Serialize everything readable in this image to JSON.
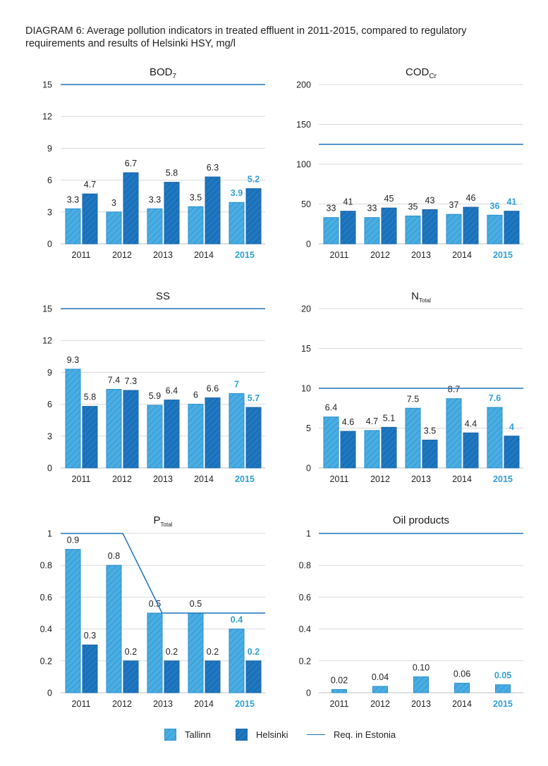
{
  "title": "DIAGRAM 6: Average pollution indicators in treated effluent in 2011-2015, compared to regulatory requirements and results of Helsinki HSY, mg/l",
  "colors": {
    "tallinn": "#4aaee3",
    "helsinki": "#1f78c1",
    "requirement": "#1f73b7",
    "highlight": "#2e9fd6",
    "grid": "#d9d9d9"
  },
  "legend": {
    "tallinn": "Tallinn",
    "helsinki": "Helsinki",
    "requirement": "Req. in Estonia"
  },
  "chart_data": [
    {
      "type": "bar",
      "title": "BOD",
      "title_sub": "7",
      "categories": [
        "2011",
        "2012",
        "2013",
        "2014",
        "2015"
      ],
      "highlight_category": "2015",
      "ylim": [
        0,
        15
      ],
      "yticks": [
        "0",
        "3",
        "6",
        "9",
        "12",
        "15"
      ],
      "series": [
        {
          "name": "Tallinn",
          "values": [
            3.3,
            3,
            3.3,
            3.5,
            3.9
          ],
          "labels": [
            "3.3",
            "3",
            "3.3",
            "3.5",
            "3.9"
          ]
        },
        {
          "name": "Helsinki",
          "values": [
            4.7,
            6.7,
            5.8,
            6.3,
            5.2
          ],
          "labels": [
            "4.7",
            "6.7",
            "5.8",
            "6.3",
            "5.2"
          ]
        }
      ],
      "requirement": [
        15,
        15,
        15,
        15,
        15
      ]
    },
    {
      "type": "bar",
      "title": "COD",
      "title_sub": "Cr",
      "categories": [
        "2011",
        "2012",
        "2013",
        "2014",
        "2015"
      ],
      "highlight_category": "2015",
      "ylim": [
        0,
        200
      ],
      "yticks": [
        "0",
        "50",
        "100",
        "150",
        "200"
      ],
      "series": [
        {
          "name": "Tallinn",
          "values": [
            33,
            33,
            35,
            37,
            36
          ],
          "labels": [
            "33",
            "33",
            "35",
            "37",
            "36"
          ]
        },
        {
          "name": "Helsinki",
          "values": [
            41,
            45,
            43,
            46,
            41
          ],
          "labels": [
            "41",
            "45",
            "43",
            "46",
            "41"
          ]
        }
      ],
      "requirement": [
        125,
        125,
        125,
        125,
        125
      ]
    },
    {
      "type": "bar",
      "title": "SS",
      "title_sub": "",
      "categories": [
        "2011",
        "2012",
        "2013",
        "2014",
        "2015"
      ],
      "highlight_category": "2015",
      "ylim": [
        0,
        15
      ],
      "yticks": [
        "0",
        "3",
        "6",
        "9",
        "12",
        "15"
      ],
      "series": [
        {
          "name": "Tallinn",
          "values": [
            9.3,
            7.4,
            5.9,
            6,
            7
          ],
          "labels": [
            "9.3",
            "7.4",
            "5.9",
            "6",
            "7"
          ]
        },
        {
          "name": "Helsinki",
          "values": [
            5.8,
            7.3,
            6.4,
            6.6,
            5.7
          ],
          "labels": [
            "5.8",
            "7.3",
            "6.4",
            "6.6",
            "5.7"
          ]
        }
      ],
      "requirement": [
        15,
        15,
        15,
        15,
        15
      ]
    },
    {
      "type": "bar",
      "title": "N",
      "title_sub": "Total",
      "categories": [
        "2011",
        "2012",
        "2013",
        "2014",
        "2015"
      ],
      "highlight_category": "2015",
      "ylim": [
        0,
        20
      ],
      "yticks": [
        "0",
        "5",
        "10",
        "15",
        "20"
      ],
      "series": [
        {
          "name": "Tallinn",
          "values": [
            6.4,
            4.7,
            7.5,
            8.7,
            7.6
          ],
          "labels": [
            "6.4",
            "4.7",
            "7.5",
            "8.7",
            "7.6"
          ]
        },
        {
          "name": "Helsinki",
          "values": [
            4.6,
            5.1,
            3.5,
            4.4,
            4
          ],
          "labels": [
            "4.6",
            "5.1",
            "3.5",
            "4.4",
            "4"
          ]
        }
      ],
      "requirement": [
        10,
        10,
        10,
        10,
        10
      ]
    },
    {
      "type": "bar",
      "title": "P",
      "title_sub": "Total",
      "categories": [
        "2011",
        "2012",
        "2013",
        "2014",
        "2015"
      ],
      "highlight_category": "2015",
      "ylim": [
        0,
        1
      ],
      "yticks": [
        "0",
        "0.2",
        "0.4",
        "0.6",
        "0.8",
        "1"
      ],
      "series": [
        {
          "name": "Tallinn",
          "values": [
            0.9,
            0.8,
            0.5,
            0.5,
            0.4
          ],
          "labels": [
            "0.9",
            "0.8",
            "0.5",
            "0.5",
            "0.4"
          ]
        },
        {
          "name": "Helsinki",
          "values": [
            0.3,
            0.2,
            0.2,
            0.2,
            0.2
          ],
          "labels": [
            "0.3",
            "0.2",
            "0.2",
            "0.2",
            "0.2"
          ]
        }
      ],
      "requirement": [
        1,
        1,
        0.5,
        0.5,
        0.5
      ]
    },
    {
      "type": "bar",
      "title": "Oil products",
      "title_sub": "",
      "categories": [
        "2011",
        "2012",
        "2013",
        "2014",
        "2015"
      ],
      "highlight_category": "2015",
      "ylim": [
        0,
        1
      ],
      "yticks": [
        "0",
        "0.2",
        "0.4",
        "0.6",
        "0.8",
        "1"
      ],
      "series": [
        {
          "name": "Tallinn",
          "values": [
            0.02,
            0.04,
            0.1,
            0.06,
            0.05
          ],
          "labels": [
            "0.02",
            "0.04",
            "0.10",
            "0.06",
            "0.05"
          ]
        }
      ],
      "requirement": [
        1,
        1,
        1,
        1,
        1
      ]
    }
  ]
}
